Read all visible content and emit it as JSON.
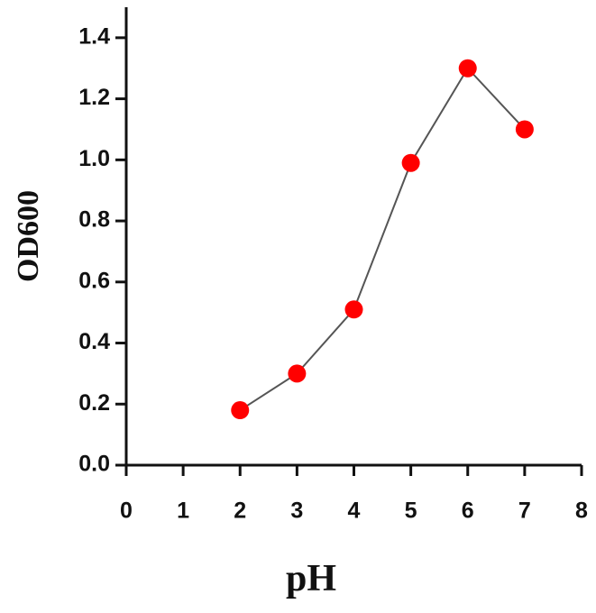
{
  "chart_data": {
    "type": "line",
    "x": [
      2,
      3,
      4,
      5,
      6,
      7
    ],
    "values": [
      0.18,
      0.3,
      0.51,
      0.99,
      1.3,
      1.1
    ],
    "color": "#ff0000",
    "line_color": "#555555",
    "x_label": "pH",
    "y_label": "OD600",
    "xlim": [
      0,
      8
    ],
    "xticks": [
      0,
      1,
      2,
      3,
      4,
      5,
      6,
      7,
      8
    ],
    "ylim": [
      0,
      1.5
    ],
    "yticks": [
      {
        "value": 0,
        "label": "0.0"
      },
      0.2,
      0.4,
      0.6,
      0.8,
      {
        "value": 1,
        "label": "1.0"
      },
      1.2,
      1.4
    ],
    "grid": false
  }
}
